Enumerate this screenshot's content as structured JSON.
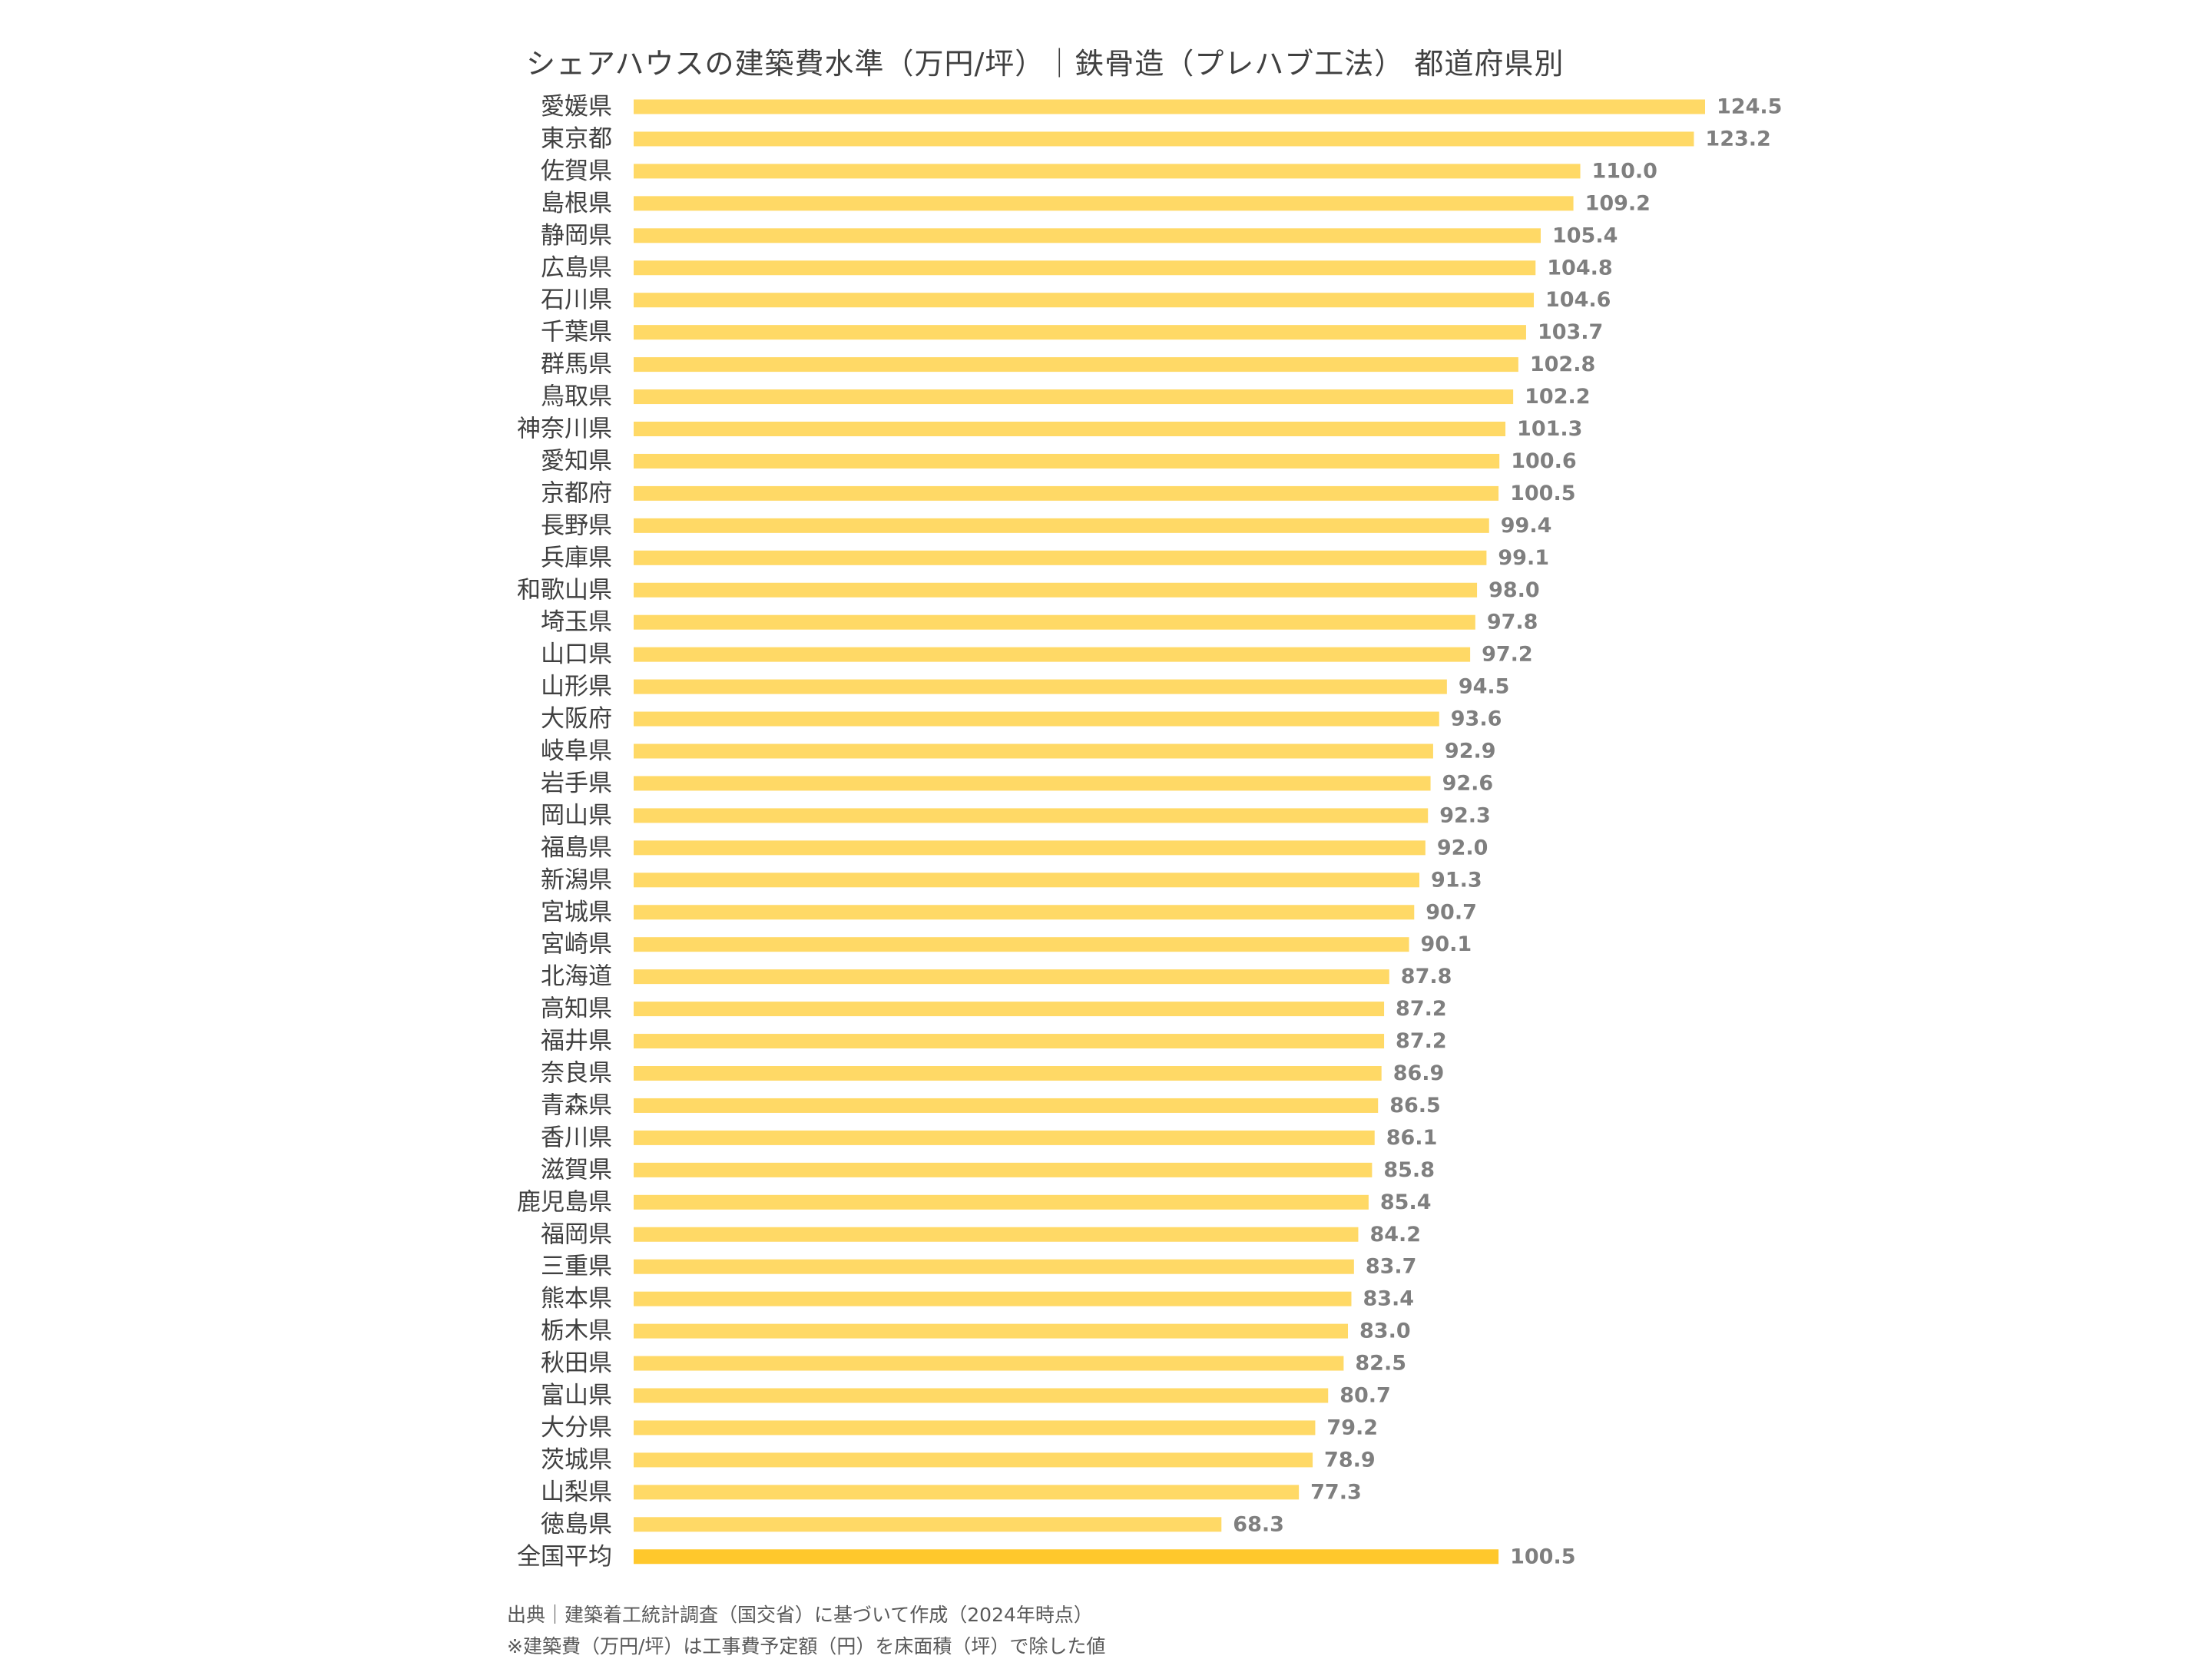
{
  "chart_data": {
    "type": "bar",
    "orientation": "horizontal",
    "title": "シェアハウスの建築費水準（万円/坪）｜鉄骨造（プレハブ工法） 都道府県別",
    "categories": [
      "愛媛県",
      "東京都",
      "佐賀県",
      "島根県",
      "静岡県",
      "広島県",
      "石川県",
      "千葉県",
      "群馬県",
      "鳥取県",
      "神奈川県",
      "愛知県",
      "京都府",
      "長野県",
      "兵庫県",
      "和歌山県",
      "埼玉県",
      "山口県",
      "山形県",
      "大阪府",
      "岐阜県",
      "岩手県",
      "岡山県",
      "福島県",
      "新潟県",
      "宮城県",
      "宮崎県",
      "北海道",
      "高知県",
      "福井県",
      "奈良県",
      "青森県",
      "香川県",
      "滋賀県",
      "鹿児島県",
      "福岡県",
      "三重県",
      "熊本県",
      "栃木県",
      "秋田県",
      "富山県",
      "大分県",
      "茨城県",
      "山梨県",
      "徳島県",
      "全国平均"
    ],
    "values": [
      124.5,
      123.2,
      110.0,
      109.2,
      105.4,
      104.8,
      104.6,
      103.7,
      102.8,
      102.2,
      101.3,
      100.6,
      100.5,
      99.4,
      99.1,
      98.0,
      97.8,
      97.2,
      94.5,
      93.6,
      92.9,
      92.6,
      92.3,
      92.0,
      91.3,
      90.7,
      90.1,
      87.8,
      87.2,
      87.2,
      86.9,
      86.5,
      86.1,
      85.8,
      85.4,
      84.2,
      83.7,
      83.4,
      83.0,
      82.5,
      80.7,
      79.2,
      78.9,
      77.3,
      68.3,
      100.5
    ],
    "value_labels": [
      "124.5",
      "123.2",
      "110.0",
      "109.2",
      "105.4",
      "104.8",
      "104.6",
      "103.7",
      "102.8",
      "102.2",
      "101.3",
      "100.6",
      "100.5",
      "99.4",
      "99.1",
      "98.0",
      "97.8",
      "97.2",
      "94.5",
      "93.6",
      "92.9",
      "92.6",
      "92.3",
      "92.0",
      "91.3",
      "90.7",
      "90.1",
      "87.8",
      "87.2",
      "87.2",
      "86.9",
      "86.5",
      "86.1",
      "85.8",
      "85.4",
      "84.2",
      "83.7",
      "83.4",
      "83.0",
      "82.5",
      "80.7",
      "79.2",
      "78.9",
      "77.3",
      "68.3",
      "100.5"
    ],
    "highlight_category": "全国平均",
    "xlim": [
      0,
      124.5
    ],
    "grid": false,
    "legend": "none",
    "colors": {
      "bar": "#FFD966",
      "bar_highlight": "#FFC82C",
      "category_label": "#404040",
      "value_label": "#7F7F7F"
    }
  },
  "footnotes": {
    "source": "出典｜建築着工統計調査（国交省）に基づいて作成（2024年時点）",
    "note": "※建築費（万円/坪）は工事費予定額（円）を床面積（坪）で除した値"
  }
}
